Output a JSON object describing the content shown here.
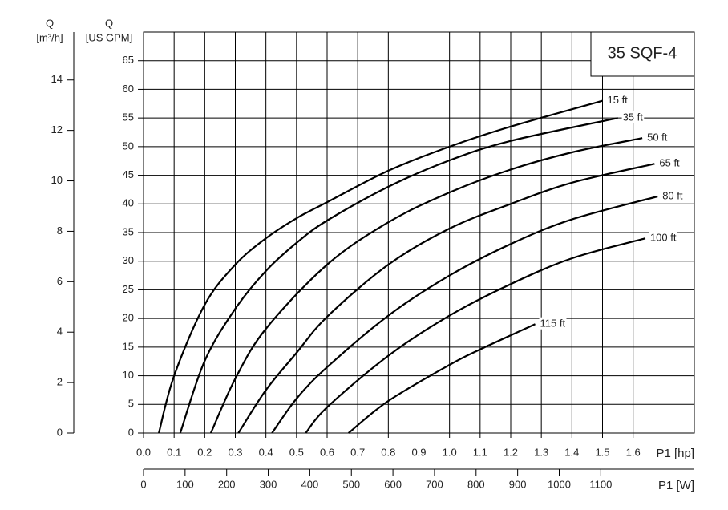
{
  "chart_data": {
    "type": "line",
    "title": "35 SQF-4",
    "y_label": "Q",
    "y_unit": "[US GPM]",
    "y2_label": "Q",
    "y2_unit": "[m³/h]",
    "x_label": "P1 [hp]",
    "x2_label": "P1 [W]",
    "xlim": [
      0,
      1.8
    ],
    "xticks": [
      {
        "value": 0,
        "label": "0.0"
      },
      0.1,
      0.2,
      0.3,
      0.4,
      0.5,
      0.6,
      0.7,
      0.8,
      0.9,
      {
        "value": 1,
        "label": "1.0"
      },
      1.1,
      1.2,
      1.3,
      1.4,
      1.5,
      1.6
    ],
    "ylim": [
      0,
      70
    ],
    "yticks": [
      0,
      5,
      10,
      15,
      20,
      25,
      30,
      35,
      40,
      45,
      50,
      55,
      60,
      65
    ],
    "y2lim": [
      0,
      15.9
    ],
    "y2ticks": [
      0,
      2,
      4,
      6,
      8,
      10,
      12,
      14
    ],
    "x2lim": [
      0,
      1325
    ],
    "x2ticks": [
      0,
      100,
      200,
      300,
      400,
      500,
      600,
      700,
      800,
      900,
      1000,
      1100
    ],
    "grid": true,
    "series": [
      {
        "name": "15 ft",
        "color": "#000000",
        "x": [
          0.05,
          0.1,
          0.2,
          0.3,
          0.4,
          0.5,
          0.6,
          0.8,
          1.0,
          1.2,
          1.5
        ],
        "values": [
          0,
          10,
          22.4,
          29.4,
          34,
          37.5,
          40.3,
          45.8,
          50,
          53.5,
          58
        ]
      },
      {
        "name": "35 ft",
        "color": "#000000",
        "x": [
          0.12,
          0.2,
          0.3,
          0.4,
          0.5,
          0.6,
          0.8,
          1.0,
          1.2,
          1.55
        ],
        "values": [
          0,
          12.6,
          21.7,
          28.3,
          33.2,
          37.1,
          43,
          47.6,
          51,
          55
        ]
      },
      {
        "name": "50 ft",
        "color": "#000000",
        "x": [
          0.22,
          0.3,
          0.4,
          0.6,
          0.8,
          1.0,
          1.2,
          1.4,
          1.63
        ],
        "values": [
          0,
          9.5,
          18.2,
          29.4,
          36.8,
          42,
          46,
          49,
          51.5
        ]
      },
      {
        "name": "65 ft",
        "color": "#000000",
        "x": [
          0.31,
          0.4,
          0.5,
          0.6,
          0.8,
          1.0,
          1.2,
          1.4,
          1.67
        ],
        "values": [
          0,
          7.5,
          14,
          20.3,
          29.4,
          35.7,
          40,
          43.7,
          47
        ]
      },
      {
        "name": "80 ft",
        "color": "#000000",
        "x": [
          0.42,
          0.5,
          0.6,
          0.8,
          1.0,
          1.2,
          1.4,
          1.68
        ],
        "values": [
          0,
          6,
          11.5,
          20.5,
          27.5,
          33,
          37.3,
          41.3
        ]
      },
      {
        "name": "100 ft",
        "color": "#000000",
        "x": [
          0.53,
          0.6,
          0.8,
          1.0,
          1.2,
          1.4,
          1.64
        ],
        "values": [
          0,
          4.5,
          13.5,
          20.5,
          26,
          30.5,
          34
        ]
      },
      {
        "name": "115 ft",
        "color": "#000000",
        "x": [
          0.67,
          0.8,
          1.0,
          1.1,
          1.28
        ],
        "values": [
          0,
          5.6,
          11.9,
          14.6,
          19
        ]
      }
    ]
  }
}
